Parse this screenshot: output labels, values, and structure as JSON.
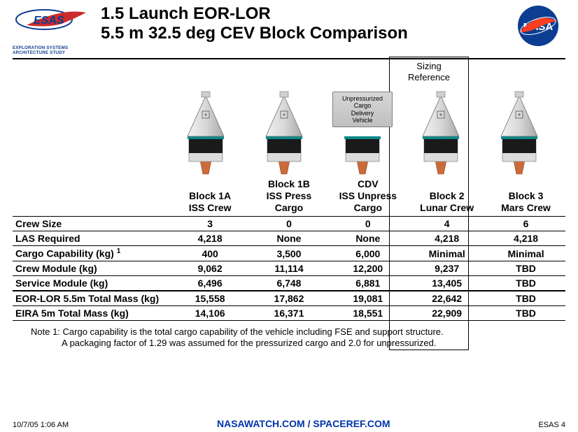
{
  "header": {
    "title_line1": "1.5 Launch EOR-LOR",
    "title_line2": "5.5 m 32.5 deg CEV Block Comparison",
    "esas_tagline": "EXPLORATION SYSTEMS ARCHITECTURE STUDY"
  },
  "sizing_reference_label": "Sizing\nReference",
  "cdv_vehicle_label": "Unpressurized\nCargo\nDelivery\nVehicle",
  "columns": [
    {
      "h1": "Block 1A",
      "h2": "ISS Crew"
    },
    {
      "h1": "Block 1B",
      "h2": "ISS Press",
      "h3": "Cargo"
    },
    {
      "h1": "CDV",
      "h2": "ISS Unpress",
      "h3": "Cargo"
    },
    {
      "h1": "Block 2",
      "h2": "Lunar Crew"
    },
    {
      "h1": "Block 3",
      "h2": "Mars Crew"
    }
  ],
  "rows": [
    {
      "label": "Crew Size",
      "vals": [
        "3",
        "0",
        "0",
        "4",
        "6"
      ]
    },
    {
      "label": "LAS Required",
      "vals": [
        "4,218",
        "None",
        "None",
        "4,218",
        "4,218"
      ]
    },
    {
      "label": "Cargo Capability (kg)",
      "note": "1",
      "vals": [
        "400",
        "3,500",
        "6,000",
        "Minimal",
        "Minimal"
      ]
    },
    {
      "label": "Crew Module (kg)",
      "vals": [
        "9,062",
        "11,114",
        "12,200",
        "9,237",
        "TBD"
      ]
    },
    {
      "label": "Service Module (kg)",
      "vals": [
        "6,496",
        "6,748",
        "6,881",
        "13,405",
        "TBD"
      ]
    }
  ],
  "totals": [
    {
      "label": "EOR-LOR 5.5m Total Mass (kg)",
      "vals": [
        "15,558",
        "17,862",
        "19,081",
        "22,642",
        "TBD"
      ]
    },
    {
      "label": "EIRA 5m Total Mass (kg)",
      "vals": [
        "14,106",
        "16,371",
        "18,551",
        "22,909",
        "TBD"
      ]
    }
  ],
  "notes": {
    "line1": "Note 1: Cargo capability is the total cargo capability of the vehicle including FSE and support structure.",
    "line2": "A packaging factor of 1.29 was assumed for the pressurized cargo and 2.0 for unpressurized."
  },
  "footer": {
    "timestamp": "10/7/05 1:06 AM",
    "center": "NASAWATCH.COM / SPACEREF.COM",
    "right": "ESAS 4"
  },
  "colors": {
    "capsule_light": "#e2e2e2",
    "capsule_dark": "#b8b8b8",
    "body_black": "#1a1a1a",
    "trunk_grey": "#dcdcdc",
    "trunk_border": "#8a8a8a",
    "nozzle": "#cc6a3a",
    "nasa_blue": "#0b3d91",
    "nasa_red": "#fc3d21"
  }
}
